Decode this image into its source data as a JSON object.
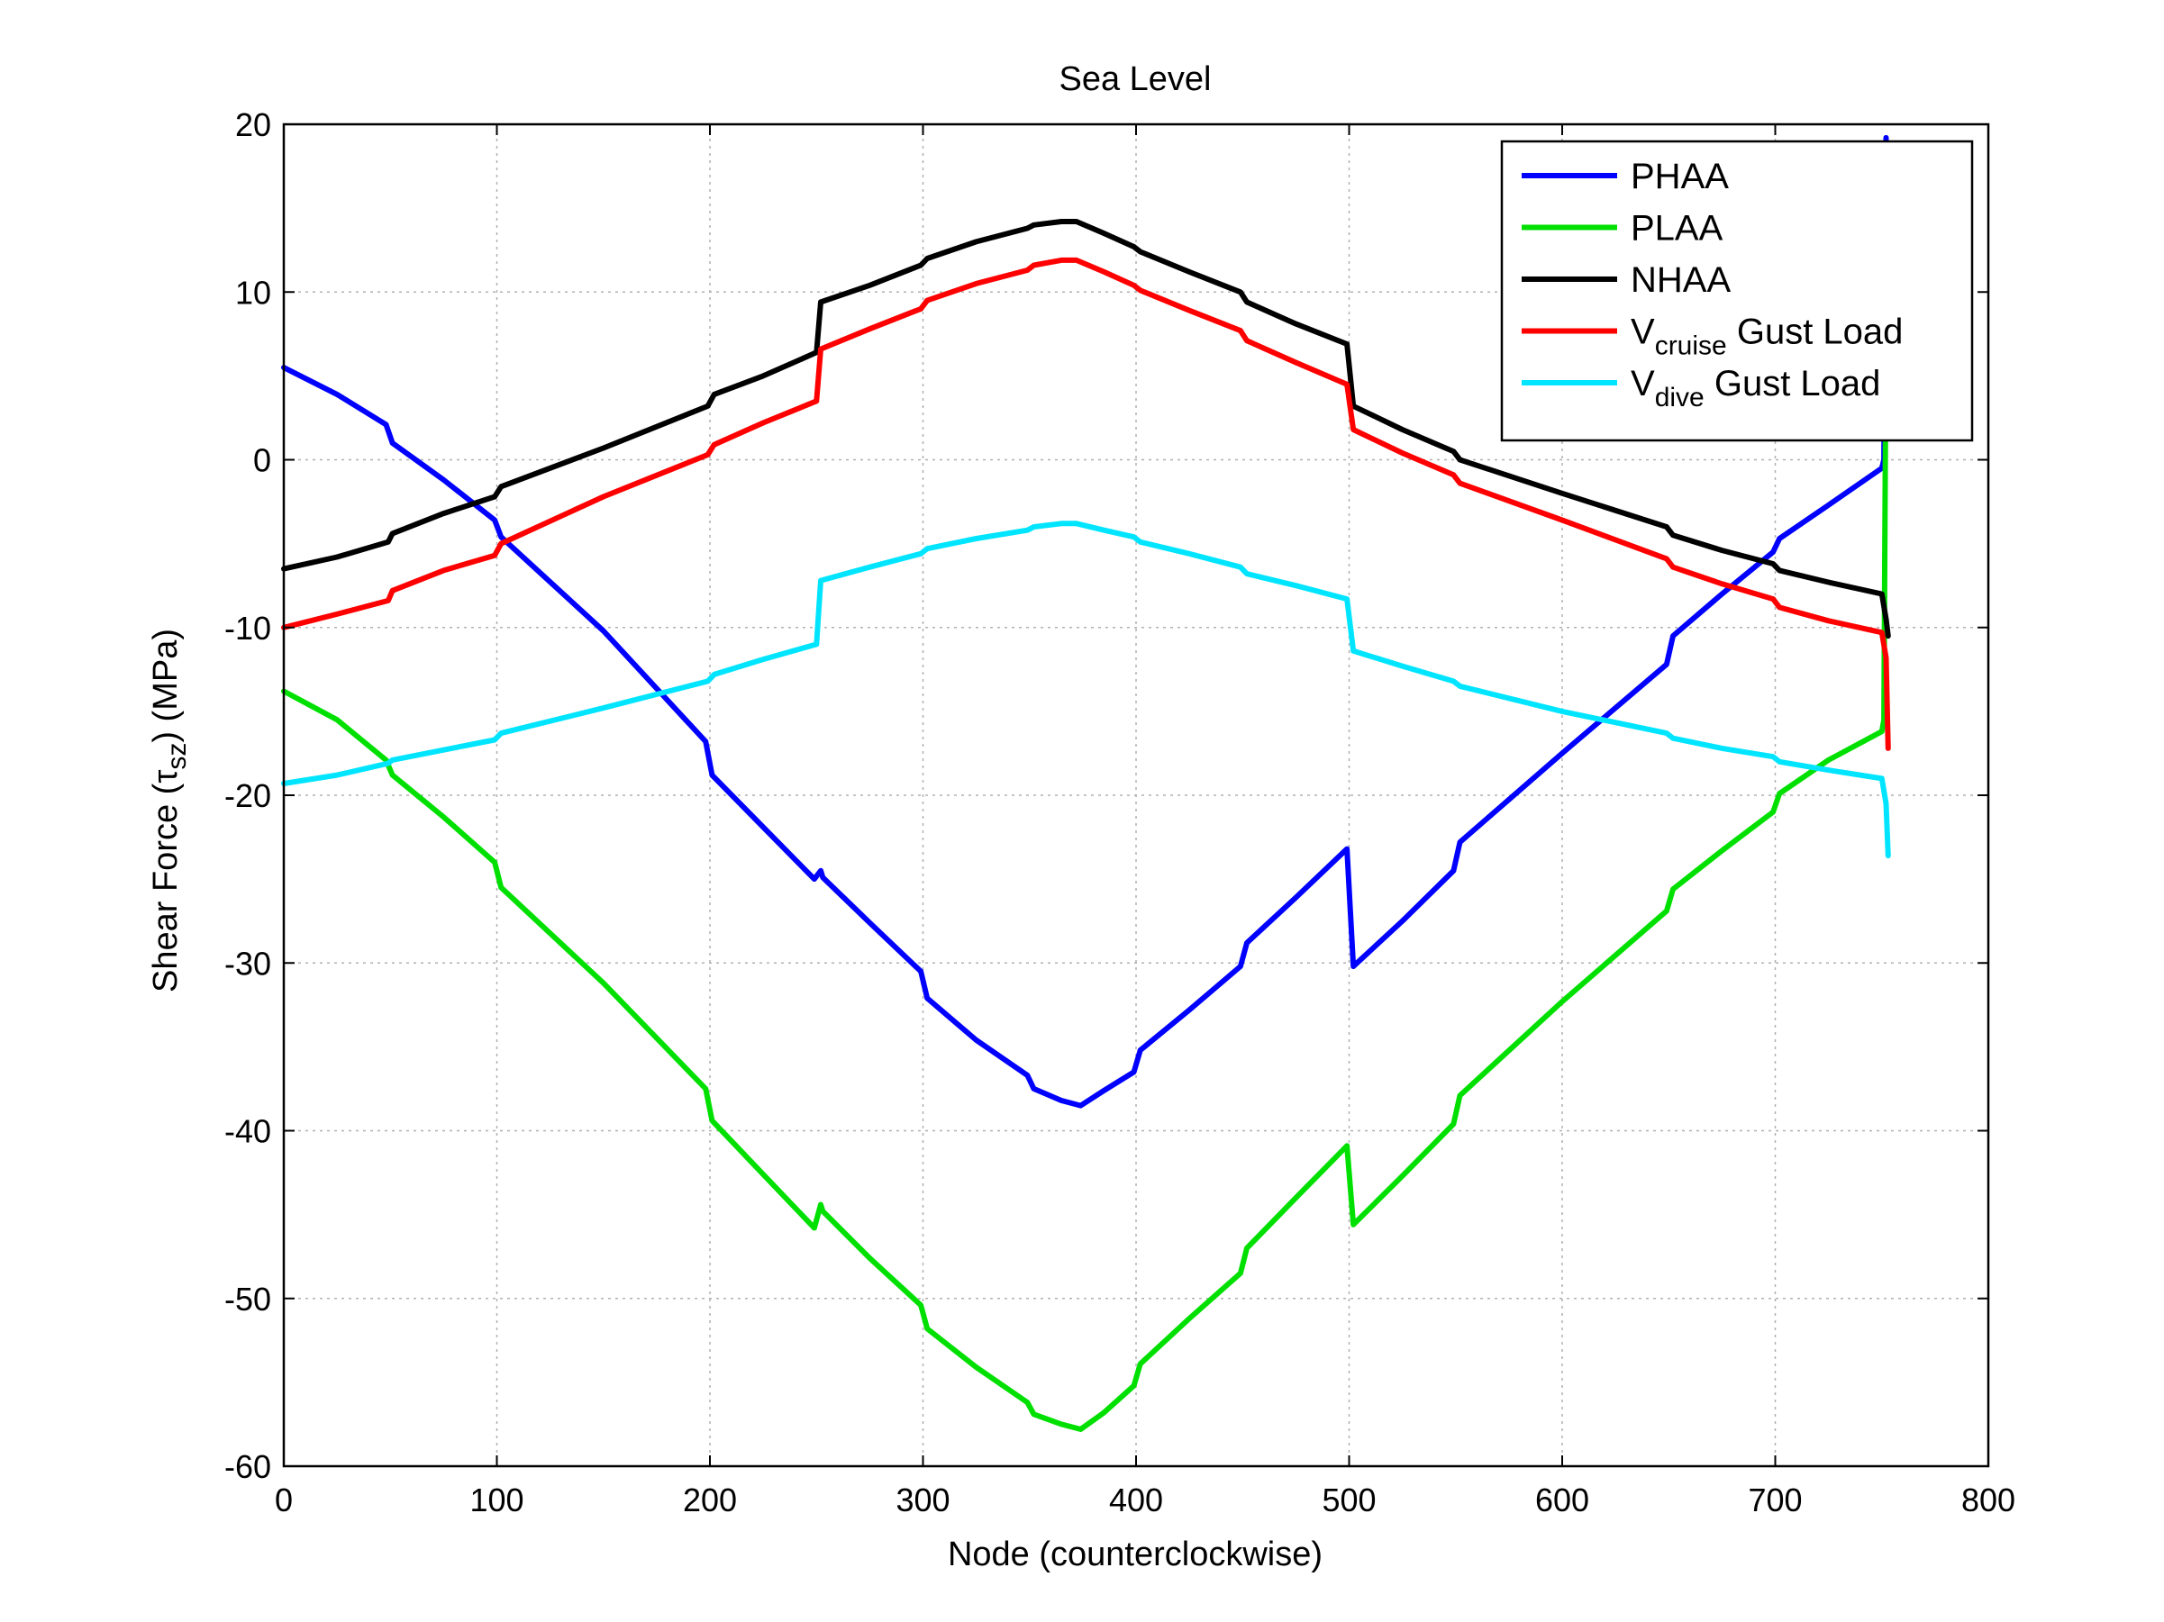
{
  "chart_data": {
    "type": "line",
    "title": "Sea Level",
    "xlabel": "Node (counterclockwise)",
    "ylabel": {
      "main": "Shear Force (τ",
      "sub": "sz",
      "tail": ") (MPa)"
    },
    "xlim": [
      0,
      800
    ],
    "ylim": [
      -60,
      20
    ],
    "xticks": [
      0,
      100,
      200,
      300,
      400,
      500,
      600,
      700,
      800
    ],
    "yticks": [
      20,
      10,
      0,
      -10,
      -20,
      -30,
      -40,
      -50,
      -60
    ],
    "grid": true,
    "legend_position": "top-right",
    "series": [
      {
        "name": "PHAA",
        "color": "#0000ff",
        "points": [
          [
            0,
            5.5
          ],
          [
            25,
            3.9
          ],
          [
            48,
            2.1
          ],
          [
            51,
            1.0
          ],
          [
            75,
            -1.2
          ],
          [
            99,
            -3.6
          ],
          [
            102,
            -4.6
          ],
          [
            150,
            -10.2
          ],
          [
            198,
            -16.8
          ],
          [
            201,
            -18.8
          ],
          [
            225,
            -21.9
          ],
          [
            249,
            -25.0
          ],
          [
            252,
            -24.5
          ],
          [
            253,
            -24.9
          ],
          [
            275,
            -27.6
          ],
          [
            299,
            -30.5
          ],
          [
            302,
            -32.1
          ],
          [
            325,
            -34.6
          ],
          [
            349,
            -36.7
          ],
          [
            352,
            -37.5
          ],
          [
            365,
            -38.2
          ],
          [
            374,
            -38.5
          ],
          [
            385,
            -37.6
          ],
          [
            399,
            -36.5
          ],
          [
            402,
            -35.2
          ],
          [
            425,
            -32.8
          ],
          [
            449,
            -30.2
          ],
          [
            452,
            -28.8
          ],
          [
            475,
            -26.1
          ],
          [
            499,
            -23.2
          ],
          [
            502,
            -30.2
          ],
          [
            525,
            -27.5
          ],
          [
            549,
            -24.5
          ],
          [
            552,
            -22.8
          ],
          [
            600,
            -17.5
          ],
          [
            649,
            -12.2
          ],
          [
            652,
            -10.5
          ],
          [
            675,
            -8.0
          ],
          [
            699,
            -5.5
          ],
          [
            702,
            -4.7
          ],
          [
            725,
            -2.7
          ],
          [
            750,
            -0.5
          ],
          [
            751,
            0.0
          ],
          [
            752,
            19.2
          ]
        ]
      },
      {
        "name": "PLAA",
        "color": "#00e000",
        "points": [
          [
            0,
            -13.8
          ],
          [
            25,
            -15.5
          ],
          [
            48,
            -17.9
          ],
          [
            51,
            -18.8
          ],
          [
            75,
            -21.3
          ],
          [
            99,
            -24.0
          ],
          [
            102,
            -25.5
          ],
          [
            150,
            -31.2
          ],
          [
            198,
            -37.5
          ],
          [
            201,
            -39.4
          ],
          [
            225,
            -42.6
          ],
          [
            249,
            -45.8
          ],
          [
            252,
            -44.4
          ],
          [
            253,
            -44.8
          ],
          [
            275,
            -47.6
          ],
          [
            299,
            -50.4
          ],
          [
            302,
            -51.8
          ],
          [
            325,
            -54.1
          ],
          [
            349,
            -56.2
          ],
          [
            352,
            -56.9
          ],
          [
            365,
            -57.5
          ],
          [
            374,
            -57.8
          ],
          [
            385,
            -56.8
          ],
          [
            399,
            -55.2
          ],
          [
            402,
            -53.9
          ],
          [
            425,
            -51.2
          ],
          [
            449,
            -48.5
          ],
          [
            452,
            -47.0
          ],
          [
            475,
            -44.0
          ],
          [
            499,
            -40.9
          ],
          [
            502,
            -45.6
          ],
          [
            525,
            -42.7
          ],
          [
            549,
            -39.6
          ],
          [
            552,
            -37.9
          ],
          [
            600,
            -32.3
          ],
          [
            649,
            -26.9
          ],
          [
            652,
            -25.6
          ],
          [
            675,
            -23.3
          ],
          [
            699,
            -21.0
          ],
          [
            702,
            -19.9
          ],
          [
            725,
            -17.9
          ],
          [
            750,
            -16.2
          ],
          [
            751,
            -15.5
          ],
          [
            752,
            8.5
          ]
        ]
      },
      {
        "name": "NHAA",
        "color": "#000000",
        "points": [
          [
            0,
            -6.5
          ],
          [
            25,
            -5.8
          ],
          [
            49,
            -4.9
          ],
          [
            51,
            -4.4
          ],
          [
            75,
            -3.2
          ],
          [
            99,
            -2.2
          ],
          [
            102,
            -1.6
          ],
          [
            150,
            0.7
          ],
          [
            199,
            3.2
          ],
          [
            202,
            3.9
          ],
          [
            225,
            5.0
          ],
          [
            250,
            6.4
          ],
          [
            252,
            9.4
          ],
          [
            275,
            10.4
          ],
          [
            299,
            11.6
          ],
          [
            302,
            12.0
          ],
          [
            325,
            13.0
          ],
          [
            349,
            13.8
          ],
          [
            352,
            14.0
          ],
          [
            365,
            14.2
          ],
          [
            372,
            14.2
          ],
          [
            385,
            13.5
          ],
          [
            399,
            12.7
          ],
          [
            402,
            12.4
          ],
          [
            425,
            11.2
          ],
          [
            449,
            10.0
          ],
          [
            452,
            9.4
          ],
          [
            475,
            8.1
          ],
          [
            499,
            6.9
          ],
          [
            502,
            3.2
          ],
          [
            525,
            1.8
          ],
          [
            549,
            0.5
          ],
          [
            552,
            0.0
          ],
          [
            600,
            -2.0
          ],
          [
            649,
            -4.0
          ],
          [
            652,
            -4.5
          ],
          [
            675,
            -5.4
          ],
          [
            699,
            -6.2
          ],
          [
            702,
            -6.6
          ],
          [
            725,
            -7.3
          ],
          [
            750,
            -8.0
          ],
          [
            752,
            -9.5
          ],
          [
            753,
            -10.5
          ]
        ]
      },
      {
        "name": "V",
        "name_sub": "cruise",
        "name_tail": " Gust Load",
        "color": "#ff0000",
        "points": [
          [
            0,
            -10.0
          ],
          [
            25,
            -9.2
          ],
          [
            49,
            -8.4
          ],
          [
            51,
            -7.8
          ],
          [
            75,
            -6.6
          ],
          [
            99,
            -5.7
          ],
          [
            102,
            -5.0
          ],
          [
            150,
            -2.2
          ],
          [
            199,
            0.3
          ],
          [
            202,
            0.9
          ],
          [
            225,
            2.2
          ],
          [
            250,
            3.5
          ],
          [
            252,
            6.6
          ],
          [
            275,
            7.8
          ],
          [
            299,
            9.0
          ],
          [
            302,
            9.5
          ],
          [
            325,
            10.5
          ],
          [
            349,
            11.3
          ],
          [
            352,
            11.6
          ],
          [
            365,
            11.9
          ],
          [
            372,
            11.9
          ],
          [
            385,
            11.2
          ],
          [
            399,
            10.4
          ],
          [
            402,
            10.1
          ],
          [
            425,
            8.9
          ],
          [
            449,
            7.7
          ],
          [
            452,
            7.1
          ],
          [
            475,
            5.8
          ],
          [
            499,
            4.5
          ],
          [
            502,
            1.8
          ],
          [
            525,
            0.4
          ],
          [
            549,
            -0.9
          ],
          [
            552,
            -1.4
          ],
          [
            600,
            -3.6
          ],
          [
            649,
            -5.9
          ],
          [
            652,
            -6.4
          ],
          [
            675,
            -7.4
          ],
          [
            699,
            -8.3
          ],
          [
            702,
            -8.8
          ],
          [
            725,
            -9.6
          ],
          [
            750,
            -10.3
          ],
          [
            752,
            -11.8
          ],
          [
            753,
            -17.2
          ]
        ]
      },
      {
        "name": "V",
        "name_sub": "dive",
        "name_tail": " Gust Load",
        "color": "#00e5ff",
        "points": [
          [
            0,
            -19.3
          ],
          [
            25,
            -18.8
          ],
          [
            49,
            -18.1
          ],
          [
            51,
            -17.9
          ],
          [
            75,
            -17.3
          ],
          [
            99,
            -16.7
          ],
          [
            102,
            -16.3
          ],
          [
            150,
            -14.8
          ],
          [
            199,
            -13.2
          ],
          [
            202,
            -12.8
          ],
          [
            225,
            -11.9
          ],
          [
            250,
            -11.0
          ],
          [
            252,
            -7.2
          ],
          [
            275,
            -6.4
          ],
          [
            299,
            -5.6
          ],
          [
            302,
            -5.3
          ],
          [
            325,
            -4.7
          ],
          [
            349,
            -4.2
          ],
          [
            352,
            -4.0
          ],
          [
            365,
            -3.8
          ],
          [
            372,
            -3.8
          ],
          [
            385,
            -4.2
          ],
          [
            399,
            -4.6
          ],
          [
            402,
            -4.9
          ],
          [
            425,
            -5.6
          ],
          [
            449,
            -6.4
          ],
          [
            452,
            -6.8
          ],
          [
            475,
            -7.5
          ],
          [
            499,
            -8.3
          ],
          [
            502,
            -11.4
          ],
          [
            525,
            -12.3
          ],
          [
            549,
            -13.2
          ],
          [
            552,
            -13.5
          ],
          [
            600,
            -15.0
          ],
          [
            649,
            -16.3
          ],
          [
            652,
            -16.6
          ],
          [
            675,
            -17.2
          ],
          [
            699,
            -17.7
          ],
          [
            702,
            -18.0
          ],
          [
            725,
            -18.5
          ],
          [
            750,
            -19.0
          ],
          [
            752,
            -20.5
          ],
          [
            753,
            -23.6
          ]
        ]
      }
    ]
  }
}
